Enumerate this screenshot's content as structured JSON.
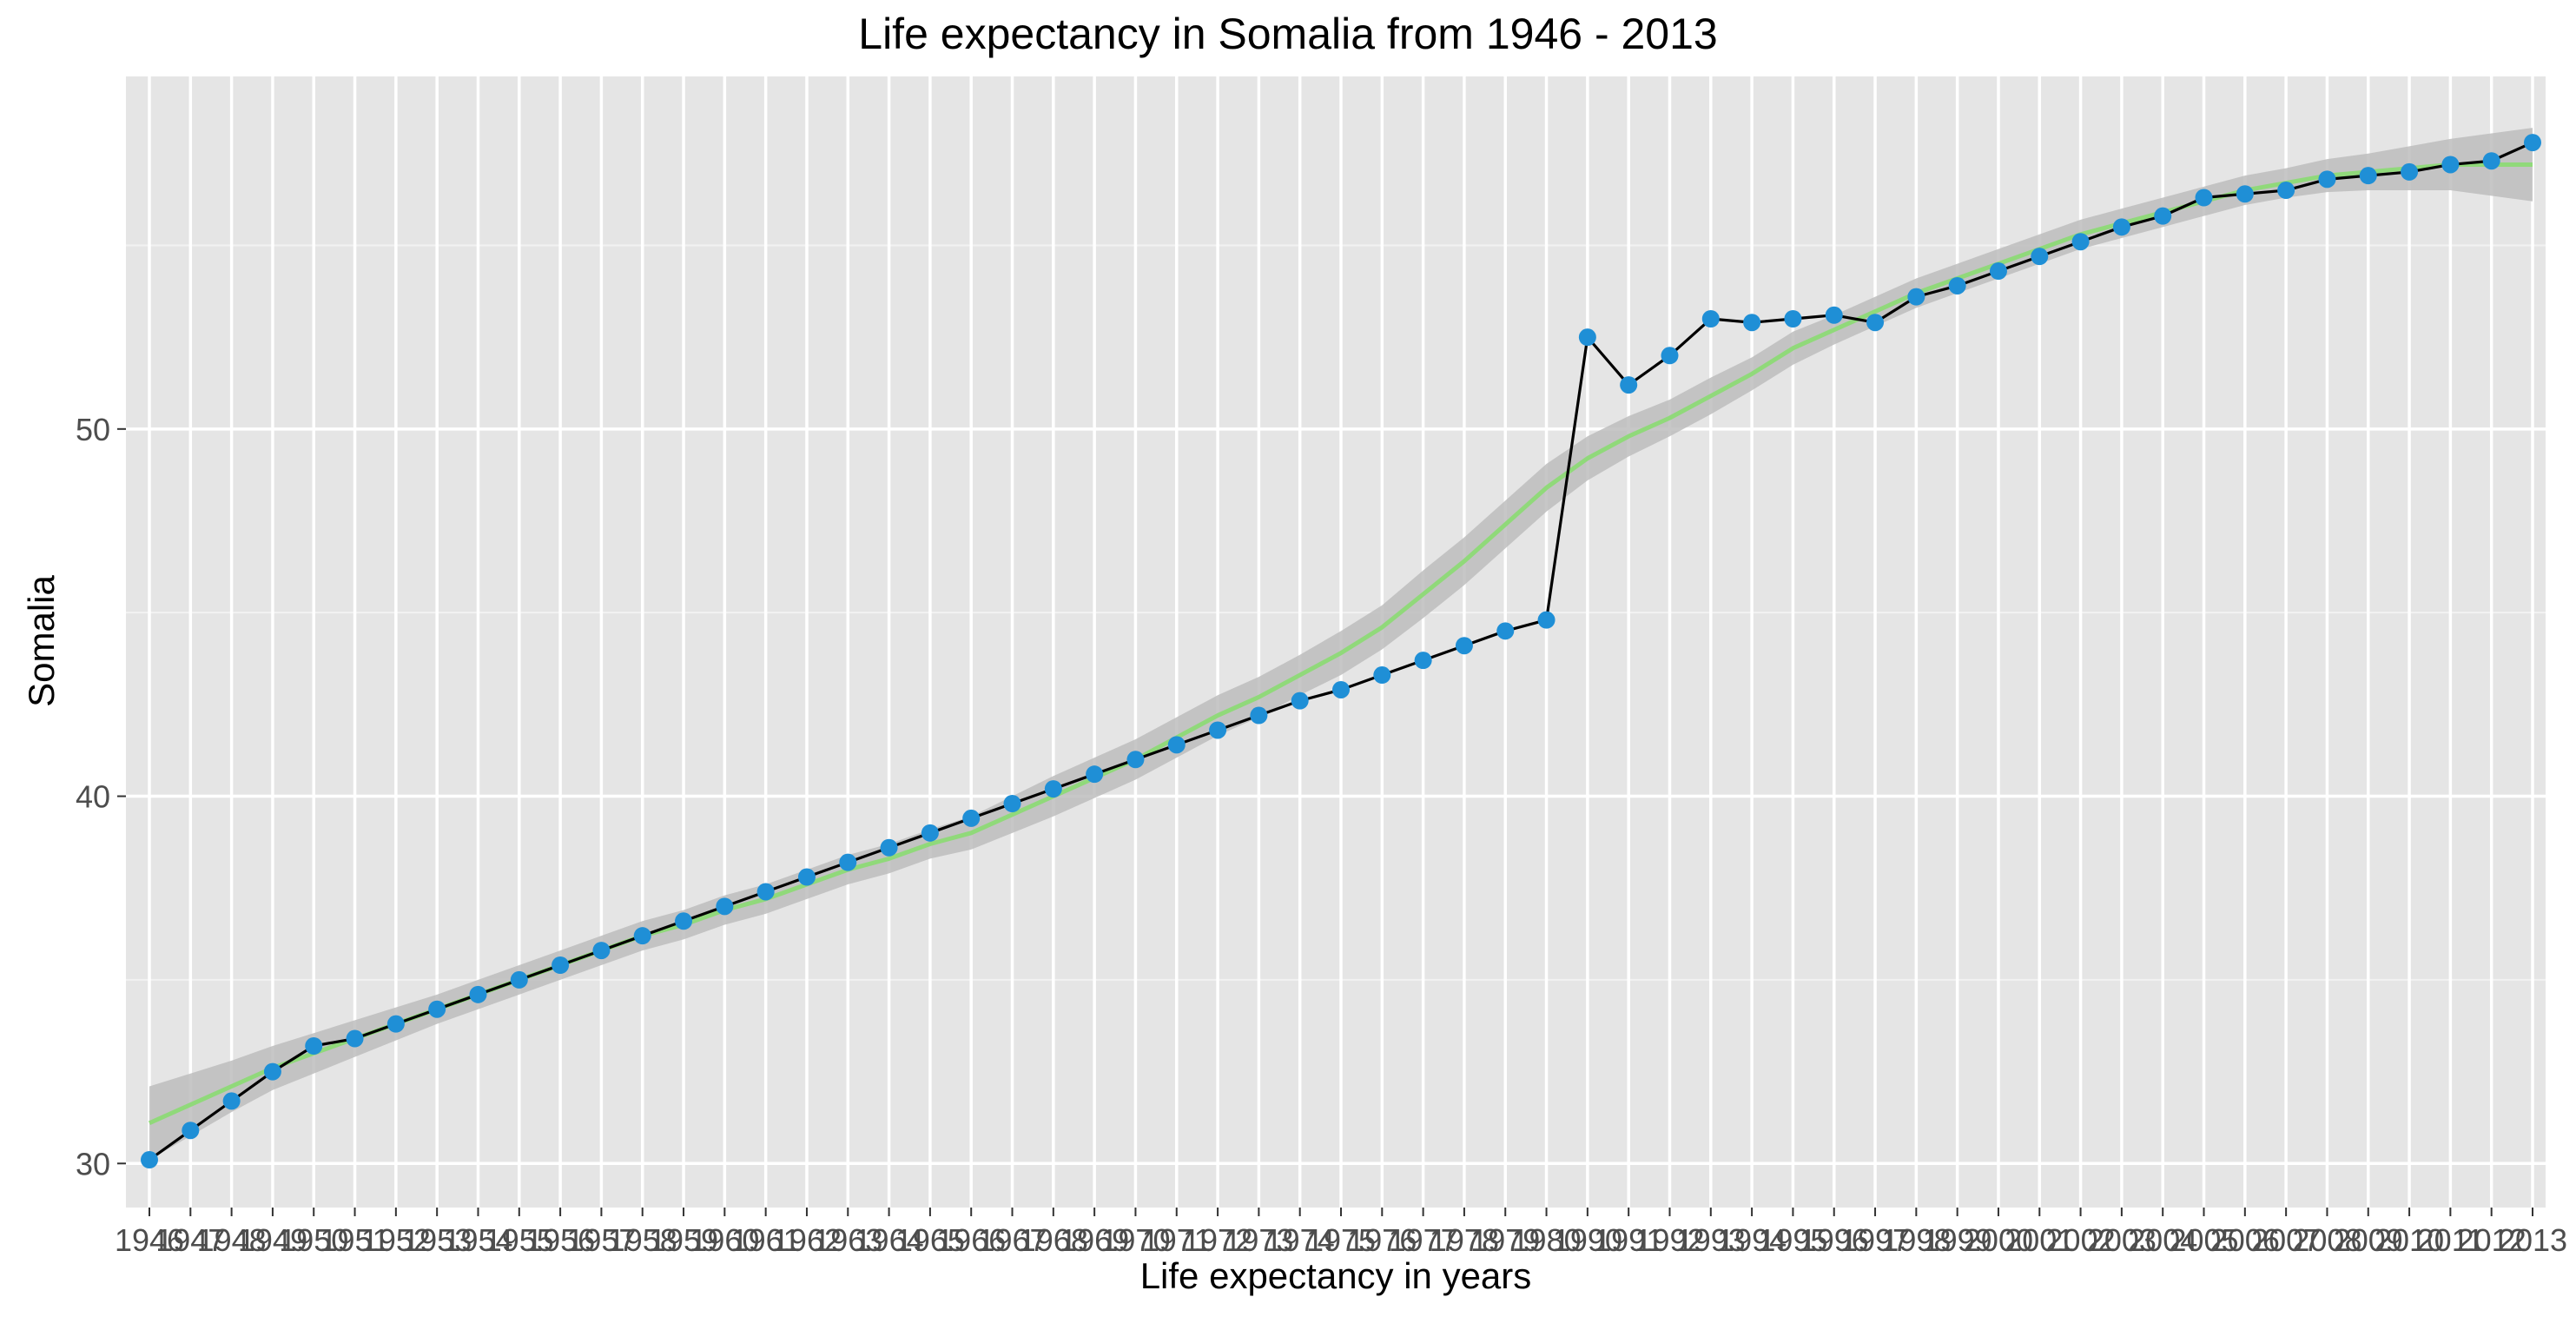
{
  "chart_data": {
    "type": "line",
    "title": "Life expectancy in Somalia from 1946 - 2013",
    "xlabel": "Life expectancy in years",
    "ylabel": "Somalia",
    "x_ticks": [
      "1946",
      "1947",
      "1948",
      "1949",
      "1950",
      "1951",
      "1952",
      "1953",
      "1954",
      "1955",
      "1956",
      "1957",
      "1958",
      "1959",
      "1960",
      "1961",
      "1962",
      "1963",
      "1964",
      "1965",
      "1966",
      "1967",
      "1968",
      "1969",
      "1970",
      "1971",
      "1972",
      "1973",
      "1974",
      "1975",
      "1976",
      "1977",
      "1978",
      "1979",
      "1980",
      "1990",
      "1991",
      "1992",
      "1993",
      "1994",
      "1995",
      "1996",
      "1997",
      "1998",
      "1999",
      "2000",
      "2001",
      "2002",
      "2003",
      "2004",
      "2005",
      "2006",
      "2007",
      "2008",
      "2009",
      "2010",
      "2011",
      "2012",
      "2013"
    ],
    "y_ticks": [
      30,
      40,
      50
    ],
    "ylim": [
      28.8,
      59.6
    ],
    "grid": true,
    "series": [
      {
        "type": "line+points",
        "color": "#000000",
        "point_color": "#1f8fd6",
        "values": [
          30.1,
          30.9,
          31.7,
          32.5,
          33.2,
          33.4,
          33.8,
          34.2,
          34.6,
          35.0,
          35.4,
          35.8,
          36.2,
          36.6,
          37.0,
          37.4,
          37.8,
          38.2,
          38.6,
          39.0,
          39.4,
          39.8,
          40.2,
          40.6,
          41.0,
          41.4,
          41.8,
          42.2,
          42.6,
          42.9,
          43.3,
          43.7,
          44.1,
          44.5,
          44.8,
          52.5,
          51.2,
          52.0,
          53.0,
          52.9,
          53.0,
          53.1,
          52.9,
          53.6,
          53.9,
          54.3,
          54.7,
          55.1,
          55.5,
          55.8,
          56.3,
          56.4,
          56.5,
          56.8,
          56.9,
          57.0,
          57.2,
          57.3,
          57.8
        ]
      },
      {
        "type": "smooth",
        "color": "#90d97a",
        "band_color": "#bdbdbd",
        "values": [
          31.1,
          31.6,
          32.1,
          32.6,
          33.0,
          33.4,
          33.8,
          34.2,
          34.6,
          35.0,
          35.4,
          35.8,
          36.2,
          36.5,
          36.9,
          37.2,
          37.6,
          38.0,
          38.3,
          38.7,
          39.0,
          39.5,
          40.0,
          40.5,
          41.0,
          41.6,
          42.2,
          42.7,
          43.3,
          43.9,
          44.6,
          45.5,
          46.4,
          47.4,
          48.4,
          49.2,
          49.8,
          50.3,
          50.9,
          51.5,
          52.2,
          52.7,
          53.2,
          53.7,
          54.1,
          54.5,
          54.9,
          55.3,
          55.6,
          55.9,
          56.2,
          56.5,
          56.7,
          56.9,
          57.0,
          57.1,
          57.2,
          57.2,
          57.2
        ],
        "band_halfwidth": [
          1.0,
          0.85,
          0.7,
          0.6,
          0.55,
          0.5,
          0.45,
          0.4,
          0.4,
          0.4,
          0.4,
          0.4,
          0.4,
          0.4,
          0.4,
          0.4,
          0.4,
          0.4,
          0.4,
          0.4,
          0.45,
          0.5,
          0.55,
          0.55,
          0.55,
          0.55,
          0.55,
          0.55,
          0.55,
          0.6,
          0.6,
          0.65,
          0.65,
          0.65,
          0.65,
          0.6,
          0.55,
          0.5,
          0.5,
          0.45,
          0.45,
          0.4,
          0.4,
          0.4,
          0.4,
          0.4,
          0.4,
          0.4,
          0.4,
          0.4,
          0.4,
          0.4,
          0.4,
          0.45,
          0.5,
          0.6,
          0.7,
          0.85,
          1.0
        ]
      }
    ]
  }
}
